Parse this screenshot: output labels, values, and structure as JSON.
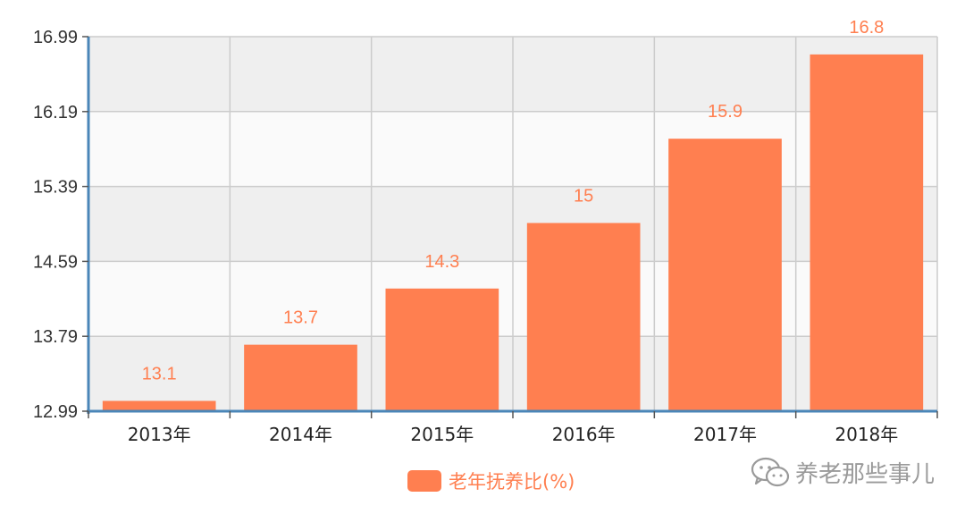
{
  "chart_data": {
    "type": "bar",
    "categories": [
      "2013年",
      "2014年",
      "2015年",
      "2016年",
      "2017年",
      "2018年"
    ],
    "series": [
      {
        "name": "老年抚养比(%)",
        "values": [
          13.1,
          13.7,
          14.3,
          15,
          15.9,
          16.8
        ],
        "color": "#ff7f50"
      }
    ],
    "data_labels": [
      "13.1",
      "13.7",
      "14.3",
      "15",
      "15.9",
      "16.8"
    ],
    "yticks": [
      "12.99",
      "13.79",
      "14.59",
      "15.39",
      "16.19",
      "16.99"
    ],
    "ylim": [
      12.99,
      16.99
    ],
    "grid": true,
    "legend_position": "bottom-center"
  },
  "legend": {
    "label": "老年抚养比(%)",
    "color": "#ff7f50"
  },
  "watermark": {
    "text": "养老那些事儿",
    "icon": "wechat-icon"
  },
  "colors": {
    "bar": "#ff7f50",
    "label": "#ff7f50",
    "axis": "#4a86b8",
    "grid": "#cccccc",
    "band_dark": "#efefef",
    "band_light": "#fafafa"
  }
}
